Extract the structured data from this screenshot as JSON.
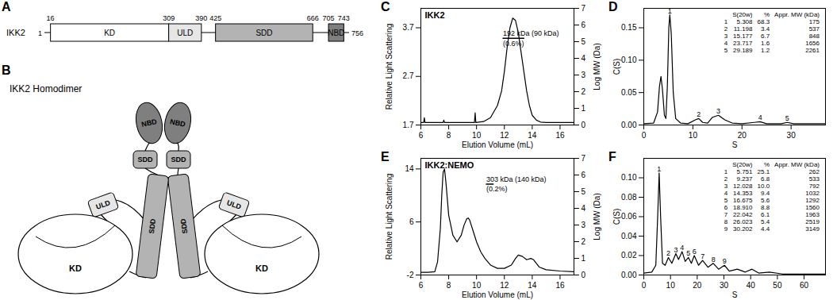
{
  "panels": [
    "A",
    "B",
    "C",
    "D",
    "E",
    "F"
  ],
  "domain_map": {
    "protein": "IKK2",
    "start": 1,
    "end": 756,
    "domains": [
      {
        "name": "KD",
        "start": 16,
        "end": 309,
        "color": "#ffffff"
      },
      {
        "name": "ULD",
        "start": 309,
        "end": 390,
        "color": "#e6e6e6"
      },
      {
        "name": "SDD",
        "start": 425,
        "end": 666,
        "color": "#b3b3b3"
      },
      {
        "name": "NBD",
        "start": 705,
        "end": 743,
        "color": "#7f7f7f"
      }
    ]
  },
  "cartoon": {
    "title": "IKK2 Homodimer",
    "nodes": [
      {
        "label": "NBD"
      },
      {
        "label": "NBD"
      },
      {
        "label": "SDD"
      },
      {
        "label": "SDD"
      },
      {
        "label": "SDD"
      },
      {
        "label": "SDD"
      },
      {
        "label": "ULD"
      },
      {
        "label": "ULD"
      },
      {
        "label": "KD"
      },
      {
        "label": "KD"
      }
    ]
  },
  "chart_data": [
    {
      "panel": "C",
      "type": "line",
      "title": "IKK2",
      "x_label": "Elution Volume (mL)",
      "y_label": "Relative Light Scattering",
      "y2_label": "Log MW (Da)",
      "xlim": [
        6,
        17
      ],
      "xticks": [
        6,
        8,
        10,
        12,
        14,
        16
      ],
      "ylim": [
        1.7,
        4.1
      ],
      "yticks": [
        1.7,
        2.7,
        3.7
      ],
      "y2lim": [
        0,
        7
      ],
      "y2ticks": [
        0,
        1,
        2,
        3,
        4,
        5,
        6,
        7
      ],
      "series": [
        {
          "color": "#000000",
          "x": [
            6,
            6.2,
            6.25,
            6.3,
            7,
            7.6,
            7.65,
            7.7,
            8.5,
            9.5,
            9.85,
            9.9,
            9.95,
            10.5,
            11,
            11.5,
            11.8,
            12,
            12.2,
            12.4,
            12.6,
            12.8,
            13,
            13.2,
            13.4,
            13.6,
            13.8,
            14,
            14.3,
            14.6,
            15,
            16,
            17
          ],
          "values": [
            1.75,
            1.75,
            1.85,
            1.75,
            1.75,
            1.75,
            1.8,
            1.75,
            1.75,
            1.75,
            1.75,
            1.95,
            1.75,
            1.77,
            1.85,
            2.1,
            2.4,
            2.8,
            3.3,
            3.7,
            3.9,
            3.85,
            3.6,
            3.2,
            2.8,
            2.4,
            2.1,
            1.9,
            1.8,
            1.76,
            1.75,
            1.75,
            1.75
          ]
        },
        {
          "color": "#000000",
          "axis": "y2",
          "x": [
            11.9,
            13.4
          ],
          "values": [
            5.2,
            5.2
          ]
        }
      ],
      "annotations": [
        "192 kDa (90 kDa)",
        "(0.6%)"
      ]
    },
    {
      "panel": "D",
      "type": "line",
      "x_label": "S",
      "y_label": "C(S)",
      "xlim": [
        0,
        37
      ],
      "xticks": [
        0,
        10,
        20,
        30
      ],
      "ylim": [
        0,
        0.18
      ],
      "yticks": [
        {
          "value": 0,
          "label": "0.00"
        },
        {
          "value": 0.05,
          "label": "0.05"
        },
        {
          "value": 0.1,
          "label": "0.10"
        },
        {
          "value": 0.15,
          "label": "0.15"
        }
      ],
      "series": [
        {
          "color": "#000000",
          "x": [
            0,
            2,
            2.8,
            3.2,
            3.5,
            3.8,
            4.2,
            4.5,
            4.8,
            5.1,
            5.3,
            5.6,
            6,
            6.5,
            7.5,
            9,
            10.5,
            11.2,
            12,
            13,
            14,
            15.2,
            16.5,
            18,
            20,
            22.5,
            23.7,
            25,
            28,
            29.2,
            30.5,
            33,
            37
          ],
          "values": [
            0.002,
            0.003,
            0.02,
            0.06,
            0.075,
            0.055,
            0.015,
            0.01,
            0.06,
            0.15,
            0.17,
            0.14,
            0.05,
            0.01,
            0.003,
            0.002,
            0.008,
            0.01,
            0.004,
            0.003,
            0.012,
            0.015,
            0.008,
            0.003,
            0.002,
            0.004,
            0.005,
            0.002,
            0.002,
            0.004,
            0.002,
            0.002,
            0.002
          ]
        }
      ],
      "table": {
        "header": [
          "S(20w)",
          "%",
          "Appr. MW (kDa)"
        ],
        "rows": [
          [
            "1",
            "5.308",
            "68.3",
            "175"
          ],
          [
            "2",
            "11.198",
            "3.4",
            "537"
          ],
          [
            "3",
            "15.177",
            "6.7",
            "848"
          ],
          [
            "4",
            "23.717",
            "1.6",
            "1656"
          ],
          [
            "5",
            "29.189",
            "1.2",
            "2261"
          ]
        ]
      }
    },
    {
      "panel": "E",
      "type": "line",
      "title": "IKK2:NEMO",
      "x_label": "Elution Volume (mL)",
      "y_label": "Relative Light Scattering",
      "y2_label": "Log MW (Da)",
      "xlim": [
        6,
        17
      ],
      "xticks": [
        6,
        8,
        10,
        12,
        14,
        16
      ],
      "ylim": [
        -2,
        15.6
      ],
      "yticks": [
        -2,
        6,
        14
      ],
      "y2lim": [
        0,
        7
      ],
      "y2ticks": [
        0,
        1,
        2,
        3,
        4,
        5,
        6,
        7
      ],
      "series": [
        {
          "color": "#000000",
          "x": [
            6,
            6.5,
            7,
            7.2,
            7.4,
            7.5,
            7.6,
            7.7,
            7.8,
            8,
            8.3,
            8.6,
            8.9,
            9.1,
            9.3,
            9.4,
            9.5,
            9.7,
            10,
            10.3,
            10.6,
            11,
            11.5,
            12,
            12.5,
            12.8,
            13,
            13.3,
            13.6,
            13.9,
            14.1,
            14.5,
            15,
            16,
            17
          ],
          "values": [
            -1.6,
            -1.6,
            -1.5,
            0,
            5,
            10,
            13.5,
            14,
            12,
            7,
            4,
            3,
            4,
            5.5,
            6.5,
            6.6,
            6.3,
            5,
            3,
            1.5,
            0.5,
            -0.5,
            -1,
            -1,
            -0.5,
            0.5,
            1,
            0.8,
            0.3,
            0.5,
            0.3,
            -0.8,
            -1.2,
            -1.4,
            -1.5
          ]
        },
        {
          "color": "#000000",
          "axis": "y2",
          "x": [
            10.7,
            11.2
          ],
          "values": [
            5.45,
            5.45
          ]
        }
      ],
      "annotations": [
        "303 kDa (140 kDa)",
        "(0.2%)"
      ]
    },
    {
      "panel": "F",
      "type": "line",
      "x_label": "S",
      "y_label": "C(S)",
      "xlim": [
        0,
        68
      ],
      "xticks": [
        0,
        10,
        20,
        30,
        40,
        50,
        60
      ],
      "ylim": [
        0,
        0.12
      ],
      "yticks": [
        {
          "value": 0,
          "label": "0.00"
        },
        {
          "value": 0.02,
          "label": "0.02"
        },
        {
          "value": 0.04,
          "label": "0.04"
        },
        {
          "value": 0.06,
          "label": "0.06"
        },
        {
          "value": 0.08,
          "label": "0.08"
        },
        {
          "value": 0.1,
          "label": "0.10"
        }
      ],
      "series": [
        {
          "color": "#000000",
          "x": [
            0,
            3,
            4.5,
            5.2,
            5.75,
            6.3,
            7,
            8,
            9.2,
            10.5,
            12,
            13,
            14.35,
            15.5,
            16.7,
            17.8,
            18.9,
            20.5,
            22,
            24,
            26,
            28,
            30.2,
            32,
            35,
            38,
            40.5,
            43,
            47,
            52,
            60,
            68
          ],
          "values": [
            0.002,
            0.003,
            0.01,
            0.06,
            0.105,
            0.06,
            0.012,
            0.01,
            0.018,
            0.012,
            0.022,
            0.016,
            0.024,
            0.014,
            0.018,
            0.012,
            0.02,
            0.01,
            0.015,
            0.008,
            0.012,
            0.006,
            0.01,
            0.004,
            0.006,
            0.003,
            0.006,
            0.002,
            0.003,
            0.001,
            0.001,
            0.001
          ]
        }
      ],
      "table": {
        "header": [
          "S(20w)",
          "%",
          "Appr. MW (kDa)"
        ],
        "rows": [
          [
            "1",
            "5.751",
            "25.1",
            "262"
          ],
          [
            "2",
            "9.237",
            "6.8",
            "533"
          ],
          [
            "3",
            "12.028",
            "10.0",
            "792"
          ],
          [
            "4",
            "14.353",
            "9.4",
            "1032"
          ],
          [
            "5",
            "16.675",
            "5.6",
            "1292"
          ],
          [
            "6",
            "18.910",
            "8.8",
            "1560"
          ],
          [
            "7",
            "22.042",
            "6.1",
            "1963"
          ],
          [
            "8",
            "26.023",
            "5.4",
            "2519"
          ],
          [
            "9",
            "30.202",
            "4.4",
            "3149"
          ]
        ]
      }
    }
  ]
}
